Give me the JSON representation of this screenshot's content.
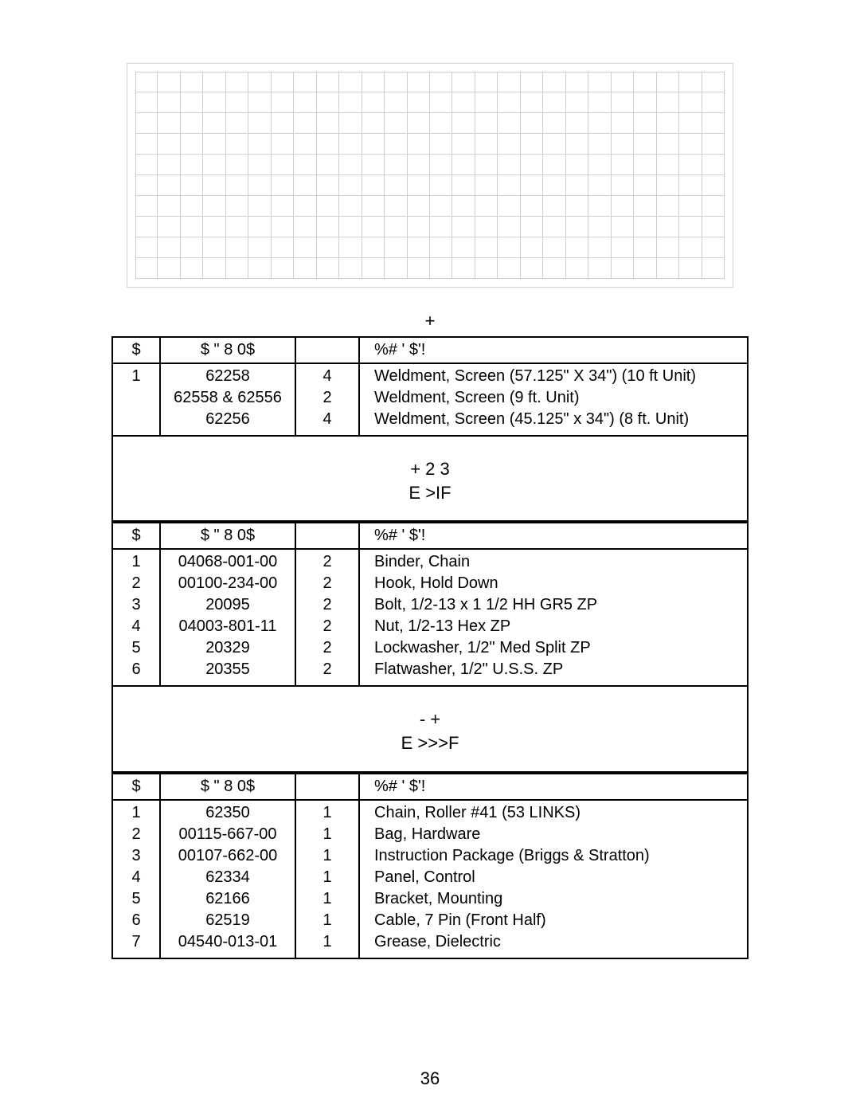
{
  "grid": {
    "cols": 26,
    "rows": 10
  },
  "preheading1": "+",
  "table1": {
    "headers": {
      "ref": "$",
      "part": "$   \" 8         0$",
      "qty": "",
      "desc": "%# ' $'!"
    },
    "rows": [
      {
        "ref": "1",
        "part": "62258",
        "qty": "4",
        "desc": "Weldment, Screen (57.125\" X 34\") (10 ft Unit)"
      },
      {
        "ref": "",
        "part": "62558 & 62556",
        "qty": "2",
        "desc": "Weldment, Screen (9 ft. Unit)"
      },
      {
        "ref": "",
        "part": "62256",
        "qty": "4",
        "desc": "Weldment, Screen (45.125\" x 34\") (8 ft. Unit)"
      }
    ]
  },
  "section2": {
    "line1": "+      2  3",
    "line2": "E   >IF"
  },
  "table2": {
    "headers": {
      "ref": "$",
      "part": "$   \" 8         0$",
      "qty": "",
      "desc": "%# ' $'!"
    },
    "rows": [
      {
        "ref": "1",
        "part": "04068-001-00",
        "qty": "2",
        "desc": "Binder, Chain"
      },
      {
        "ref": "2",
        "part": "00100-234-00",
        "qty": "2",
        "desc": "Hook, Hold Down"
      },
      {
        "ref": "3",
        "part": "20095",
        "qty": "2",
        "desc": "Bolt, 1/2-13 x 1 1/2 HH GR5 ZP"
      },
      {
        "ref": "4",
        "part": "04003-801-11",
        "qty": "2",
        "desc": "Nut, 1/2-13 Hex ZP"
      },
      {
        "ref": "5",
        "part": "20329",
        "qty": "2",
        "desc": "Lockwasher, 1/2\" Med Split ZP"
      },
      {
        "ref": "6",
        "part": "20355",
        "qty": "2",
        "desc": "Flatwasher, 1/2\" U.S.S. ZP"
      }
    ]
  },
  "section3": {
    "line1": "-    +",
    "line2": "E  >>>F"
  },
  "table3": {
    "headers": {
      "ref": "$",
      "part": "$   \" 8        0$",
      "qty": "",
      "desc": "%# ' $'!"
    },
    "rows": [
      {
        "ref": "1",
        "part": "62350",
        "qty": "1",
        "desc": "Chain, Roller #41 (53 LINKS)"
      },
      {
        "ref": "2",
        "part": "00115-667-00",
        "qty": "1",
        "desc": "Bag, Hardware"
      },
      {
        "ref": "3",
        "part": "00107-662-00",
        "qty": "1",
        "desc": "Instruction Package (Briggs & Stratton)"
      },
      {
        "ref": "4",
        "part": "62334",
        "qty": "1",
        "desc": "Panel, Control"
      },
      {
        "ref": "5",
        "part": "62166",
        "qty": "1",
        "desc": "Bracket, Mounting"
      },
      {
        "ref": "6",
        "part": "62519",
        "qty": "1",
        "desc": "Cable, 7 Pin (Front Half)"
      },
      {
        "ref": "7",
        "part": "04540-013-01",
        "qty": "1",
        "desc": "Grease, Dielectric"
      }
    ]
  },
  "pageNumber": "36"
}
